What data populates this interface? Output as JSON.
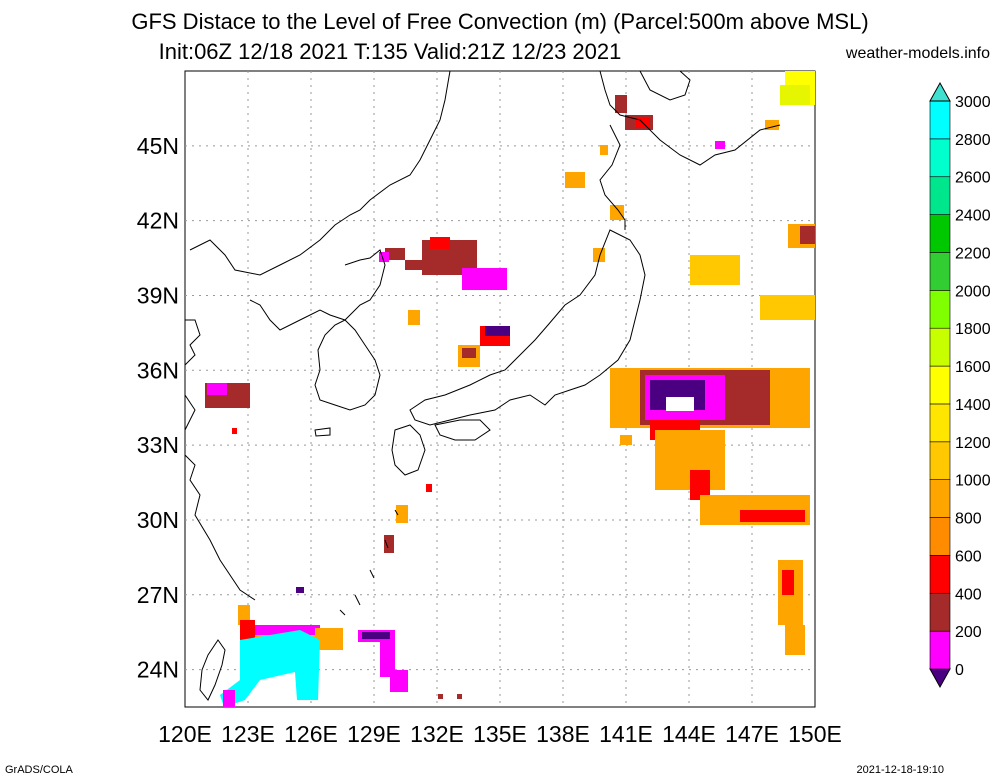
{
  "title": {
    "line1": "GFS Distace to the Level of Free Convection (m) (Parcel:500m above MSL)",
    "line2": "Init:06Z 12/18 2021 T:135 Valid:21Z 12/23 2021",
    "site": "weather-models.info"
  },
  "footer": {
    "left": "GrADS/COLA",
    "right": "2021-12-18-19:10"
  },
  "axes": {
    "lon_labels": [
      "120E",
      "123E",
      "126E",
      "129E",
      "132E",
      "135E",
      "138E",
      "141E",
      "144E",
      "147E",
      "150E"
    ],
    "lat_labels": [
      "24N",
      "27N",
      "30N",
      "33N",
      "36N",
      "39N",
      "42N",
      "45N"
    ],
    "lon_range": [
      120,
      150
    ],
    "lat_range": [
      22.5,
      48
    ]
  },
  "colorbar": {
    "labels": [
      "0",
      "200",
      "400",
      "600",
      "800",
      "1000",
      "1200",
      "1400",
      "1600",
      "1800",
      "2000",
      "2200",
      "2400",
      "2600",
      "2800",
      "3000"
    ],
    "colors": [
      "#4b0082",
      "#ff00ff",
      "#a52a2a",
      "#ff0000",
      "#ff8c00",
      "#ffa500",
      "#ffc800",
      "#ffe600",
      "#ffff00",
      "#c8ff00",
      "#7fff00",
      "#32cd32",
      "#00c800",
      "#00e68c",
      "#00ffcc",
      "#00ffff",
      "#40e0d0"
    ]
  },
  "legend_title": ""
}
